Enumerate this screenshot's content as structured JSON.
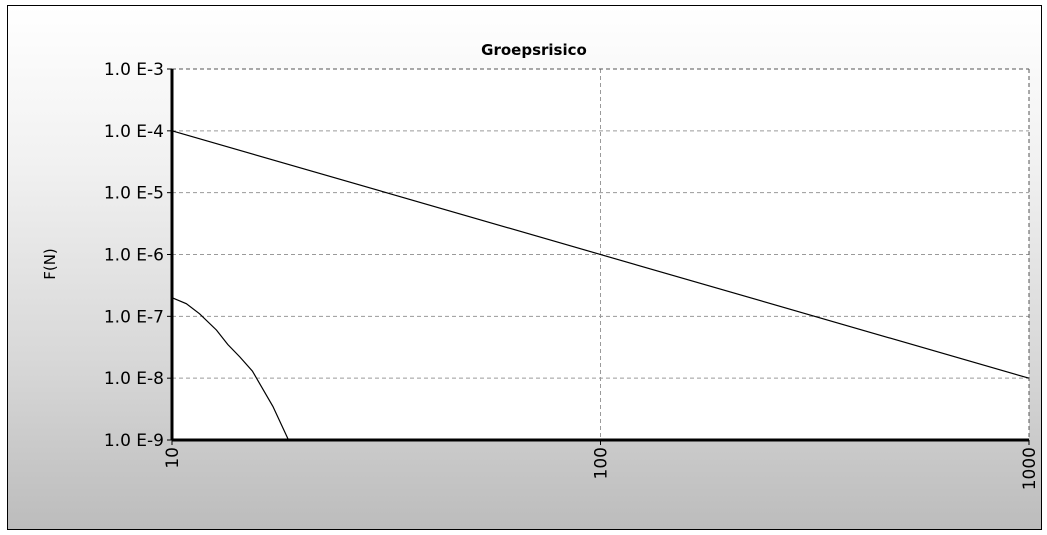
{
  "chart_data": {
    "type": "line",
    "title": "Groepsrisico",
    "xlabel": "",
    "ylabel": "F(N)",
    "x_scale": "log",
    "y_scale": "log",
    "xlim": [
      10,
      1000
    ],
    "ylim": [
      1e-09,
      0.001
    ],
    "grid": true,
    "x_ticks": [
      10,
      100,
      1000
    ],
    "x_tick_labels": [
      "10",
      "100",
      "1000"
    ],
    "y_ticks": [
      1e-09,
      1e-08,
      1e-07,
      1e-06,
      1e-05,
      0.0001,
      0.001
    ],
    "y_tick_labels": [
      "1.0 E-9",
      "1.0 E-8",
      "1.0 E-7",
      "1.0 E-6",
      "1.0 E-5",
      "1.0 E-4",
      "1.0 E-3"
    ],
    "series": [
      {
        "x": [
          10,
          1000
        ],
        "y": [
          0.0001,
          1e-08
        ]
      },
      {
        "x": [
          10,
          10.8,
          11.6,
          12.7,
          13.5,
          14.4,
          15.4,
          17.2,
          18.7
        ],
        "y": [
          2e-07,
          1.6e-07,
          1.1e-07,
          6e-08,
          3.5e-08,
          2.2e-08,
          1.3e-08,
          3.5e-09,
          1e-09
        ]
      }
    ]
  },
  "colors": {
    "line": "#000000",
    "grid": "#9a9a9a",
    "plot_background": "#ffffff"
  }
}
